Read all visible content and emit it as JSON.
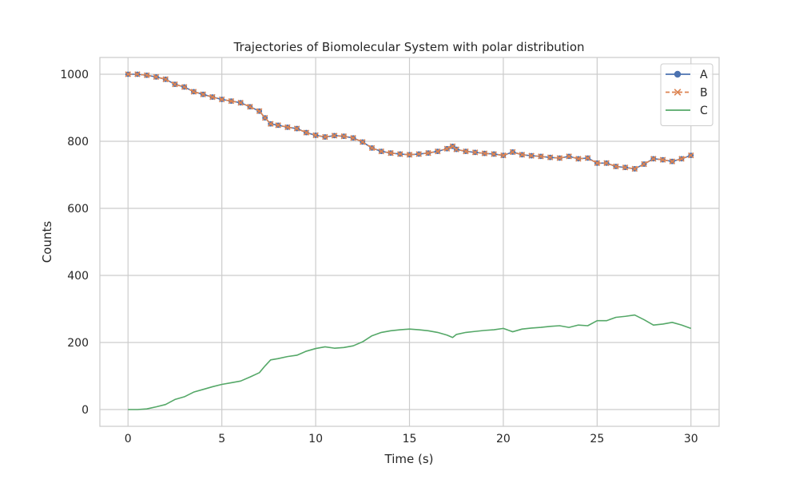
{
  "chart_data": {
    "type": "line",
    "title": "Trajectories of Biomolecular System with polar distribution",
    "xlabel": "Time (s)",
    "ylabel": "Counts",
    "xlim": [
      -1.5,
      31.5
    ],
    "ylim": [
      -50,
      1050
    ],
    "xticks": [
      0,
      5,
      10,
      15,
      20,
      25,
      30
    ],
    "yticks": [
      0,
      200,
      400,
      600,
      800,
      1000
    ],
    "grid": true,
    "legend_position": "top-right",
    "series": [
      {
        "name": "A",
        "color": "#4c72b0",
        "marker": "circle",
        "linestyle": "solid",
        "points": [
          [
            0,
            1000
          ],
          [
            0.5,
            1000
          ],
          [
            1,
            997
          ],
          [
            1.5,
            992
          ],
          [
            2,
            985
          ],
          [
            2.5,
            970
          ],
          [
            3,
            962
          ],
          [
            3.5,
            948
          ],
          [
            4,
            940
          ],
          [
            4.5,
            932
          ],
          [
            5,
            925
          ],
          [
            5.5,
            920
          ],
          [
            6,
            915
          ],
          [
            6.5,
            903
          ],
          [
            7,
            890
          ],
          [
            7.3,
            870
          ],
          [
            7.6,
            852
          ],
          [
            8,
            848
          ],
          [
            8.5,
            842
          ],
          [
            9,
            838
          ],
          [
            9.5,
            826
          ],
          [
            10,
            818
          ],
          [
            10.5,
            813
          ],
          [
            11,
            817
          ],
          [
            11.5,
            815
          ],
          [
            12,
            810
          ],
          [
            12.5,
            798
          ],
          [
            13,
            780
          ],
          [
            13.5,
            770
          ],
          [
            14,
            765
          ],
          [
            14.5,
            762
          ],
          [
            15,
            760
          ],
          [
            15.5,
            762
          ],
          [
            16,
            765
          ],
          [
            16.5,
            770
          ],
          [
            17,
            778
          ],
          [
            17.3,
            785
          ],
          [
            17.5,
            776
          ],
          [
            18,
            770
          ],
          [
            18.5,
            767
          ],
          [
            19,
            764
          ],
          [
            19.5,
            762
          ],
          [
            20,
            758
          ],
          [
            20.5,
            768
          ],
          [
            21,
            760
          ],
          [
            21.5,
            757
          ],
          [
            22,
            755
          ],
          [
            22.5,
            752
          ],
          [
            23,
            750
          ],
          [
            23.5,
            755
          ],
          [
            24,
            748
          ],
          [
            24.5,
            750
          ],
          [
            25,
            735
          ],
          [
            25.5,
            735
          ],
          [
            26,
            725
          ],
          [
            26.5,
            722
          ],
          [
            27,
            718
          ],
          [
            27.5,
            732
          ],
          [
            28,
            748
          ],
          [
            28.5,
            745
          ],
          [
            29,
            740
          ],
          [
            29.5,
            748
          ],
          [
            30,
            758
          ]
        ]
      },
      {
        "name": "B",
        "color": "#dd8452",
        "marker": "x",
        "linestyle": "dashed",
        "points": [
          [
            0,
            1000
          ],
          [
            0.5,
            1000
          ],
          [
            1,
            997
          ],
          [
            1.5,
            992
          ],
          [
            2,
            985
          ],
          [
            2.5,
            970
          ],
          [
            3,
            962
          ],
          [
            3.5,
            948
          ],
          [
            4,
            940
          ],
          [
            4.5,
            932
          ],
          [
            5,
            925
          ],
          [
            5.5,
            920
          ],
          [
            6,
            915
          ],
          [
            6.5,
            903
          ],
          [
            7,
            890
          ],
          [
            7.3,
            870
          ],
          [
            7.6,
            852
          ],
          [
            8,
            848
          ],
          [
            8.5,
            842
          ],
          [
            9,
            838
          ],
          [
            9.5,
            826
          ],
          [
            10,
            818
          ],
          [
            10.5,
            813
          ],
          [
            11,
            817
          ],
          [
            11.5,
            815
          ],
          [
            12,
            810
          ],
          [
            12.5,
            798
          ],
          [
            13,
            780
          ],
          [
            13.5,
            770
          ],
          [
            14,
            765
          ],
          [
            14.5,
            762
          ],
          [
            15,
            760
          ],
          [
            15.5,
            762
          ],
          [
            16,
            765
          ],
          [
            16.5,
            770
          ],
          [
            17,
            778
          ],
          [
            17.3,
            785
          ],
          [
            17.5,
            776
          ],
          [
            18,
            770
          ],
          [
            18.5,
            767
          ],
          [
            19,
            764
          ],
          [
            19.5,
            762
          ],
          [
            20,
            758
          ],
          [
            20.5,
            768
          ],
          [
            21,
            760
          ],
          [
            21.5,
            757
          ],
          [
            22,
            755
          ],
          [
            22.5,
            752
          ],
          [
            23,
            750
          ],
          [
            23.5,
            755
          ],
          [
            24,
            748
          ],
          [
            24.5,
            750
          ],
          [
            25,
            735
          ],
          [
            25.5,
            735
          ],
          [
            26,
            725
          ],
          [
            26.5,
            722
          ],
          [
            27,
            718
          ],
          [
            27.5,
            732
          ],
          [
            28,
            748
          ],
          [
            28.5,
            745
          ],
          [
            29,
            740
          ],
          [
            29.5,
            748
          ],
          [
            30,
            758
          ]
        ]
      },
      {
        "name": "C",
        "color": "#55a868",
        "marker": "none",
        "linestyle": "solid",
        "points": [
          [
            0,
            0
          ],
          [
            0.5,
            0
          ],
          [
            1,
            2
          ],
          [
            1.5,
            8
          ],
          [
            2,
            15
          ],
          [
            2.5,
            30
          ],
          [
            3,
            38
          ],
          [
            3.5,
            52
          ],
          [
            4,
            60
          ],
          [
            4.5,
            68
          ],
          [
            5,
            75
          ],
          [
            5.5,
            80
          ],
          [
            6,
            85
          ],
          [
            6.5,
            97
          ],
          [
            7,
            110
          ],
          [
            7.3,
            130
          ],
          [
            7.6,
            148
          ],
          [
            8,
            152
          ],
          [
            8.5,
            158
          ],
          [
            9,
            162
          ],
          [
            9.5,
            174
          ],
          [
            10,
            182
          ],
          [
            10.5,
            187
          ],
          [
            11,
            183
          ],
          [
            11.5,
            185
          ],
          [
            12,
            190
          ],
          [
            12.5,
            202
          ],
          [
            13,
            220
          ],
          [
            13.5,
            230
          ],
          [
            14,
            235
          ],
          [
            14.5,
            238
          ],
          [
            15,
            240
          ],
          [
            15.5,
            238
          ],
          [
            16,
            235
          ],
          [
            16.5,
            230
          ],
          [
            17,
            222
          ],
          [
            17.3,
            215
          ],
          [
            17.5,
            224
          ],
          [
            18,
            230
          ],
          [
            18.5,
            233
          ],
          [
            19,
            236
          ],
          [
            19.5,
            238
          ],
          [
            20,
            242
          ],
          [
            20.5,
            232
          ],
          [
            21,
            240
          ],
          [
            21.5,
            243
          ],
          [
            22,
            245
          ],
          [
            22.5,
            248
          ],
          [
            23,
            250
          ],
          [
            23.5,
            245
          ],
          [
            24,
            252
          ],
          [
            24.5,
            250
          ],
          [
            25,
            265
          ],
          [
            25.5,
            265
          ],
          [
            26,
            275
          ],
          [
            26.5,
            278
          ],
          [
            27,
            282
          ],
          [
            27.5,
            268
          ],
          [
            28,
            252
          ],
          [
            28.5,
            255
          ],
          [
            29,
            260
          ],
          [
            29.5,
            252
          ],
          [
            30,
            242
          ]
        ]
      }
    ]
  }
}
